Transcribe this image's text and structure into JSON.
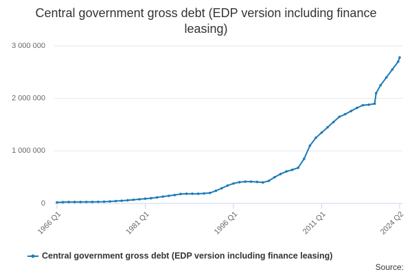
{
  "chart_data": {
    "type": "line",
    "title": "Central government gross debt (EDP version including finance leasing)",
    "source": "Source:",
    "x": [
      1966,
      1967,
      1968,
      1969,
      1970,
      1971,
      1972,
      1973,
      1974,
      1975,
      1976,
      1977,
      1978,
      1979,
      1980,
      1981,
      1982,
      1983,
      1984,
      1985,
      1986,
      1987,
      1988,
      1989,
      1990,
      1991,
      1992,
      1993,
      1994,
      1995,
      1996,
      1997,
      1998,
      1999,
      2000,
      2001,
      2002,
      2003,
      2004,
      2005,
      2006,
      2007,
      2008,
      2009,
      2010,
      2011,
      2012,
      2013,
      2014,
      2015,
      2016,
      2017,
      2018,
      2019,
      2020,
      2020.25,
      2021,
      2022,
      2023,
      2024,
      2024.25
    ],
    "series": [
      {
        "name": "Central government gross debt (EDP version including finance leasing)",
        "color": "#1a7ab8",
        "values": [
          20000,
          25000,
          28000,
          28000,
          28000,
          29000,
          30000,
          31000,
          33000,
          38000,
          45000,
          52000,
          60000,
          70000,
          80000,
          90000,
          100000,
          115000,
          130000,
          145000,
          160000,
          180000,
          185000,
          185000,
          185000,
          190000,
          200000,
          240000,
          290000,
          340000,
          380000,
          405000,
          415000,
          415000,
          410000,
          400000,
          430000,
          500000,
          560000,
          610000,
          640000,
          680000,
          850000,
          1100000,
          1250000,
          1350000,
          1450000,
          1550000,
          1650000,
          1700000,
          1760000,
          1820000,
          1870000,
          1880000,
          1900000,
          2100000,
          2250000,
          2400000,
          2550000,
          2700000,
          2780000
        ]
      }
    ],
    "xlim": [
      1966,
      2024.25
    ],
    "xticks": [
      {
        "value": 1966,
        "label": "1966 Q1"
      },
      {
        "value": 1981,
        "label": "1981 Q1"
      },
      {
        "value": 1996,
        "label": "1996 Q1"
      },
      {
        "value": 2011,
        "label": "2011 Q1"
      },
      {
        "value": 2024.25,
        "label": "2024 Q2"
      }
    ],
    "ylim": [
      0,
      3000000
    ],
    "yticks": [
      0,
      {
        "value": 1000000,
        "label": "1 000 000"
      },
      {
        "value": 2000000,
        "label": "2 000 000"
      },
      {
        "value": 3000000,
        "label": "3 000 000"
      }
    ],
    "grid": true,
    "legend": "bottom"
  }
}
